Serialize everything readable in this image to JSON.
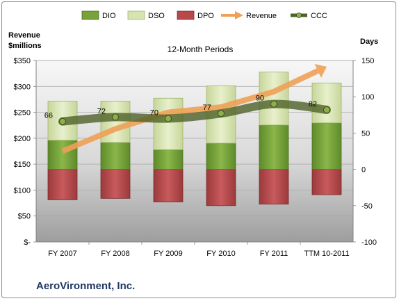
{
  "chart_data": {
    "type": "bar",
    "title": "12-Month Periods",
    "categories": [
      "FY 2007",
      "FY 2008",
      "FY 2009",
      "FY 2010",
      "FY 2011",
      "TTM 10-2011"
    ],
    "left_axis": {
      "label_line1": "Revenue",
      "label_line2": "$millions",
      "ylim": [
        0,
        350
      ],
      "ticks": [
        0,
        50,
        100,
        150,
        200,
        250,
        300,
        350
      ],
      "tick_labels": [
        "$-",
        "$50",
        "$100",
        "$150",
        "$200",
        "$250",
        "$300",
        "$350"
      ]
    },
    "right_axis": {
      "label": "Days",
      "ylim": [
        -100,
        150
      ],
      "ticks": [
        -100,
        -50,
        0,
        50,
        100,
        150
      ],
      "tick_labels": [
        "-100",
        "-50",
        "0",
        "50",
        "100",
        "150"
      ]
    },
    "series": [
      {
        "name": "DIO",
        "axis": "right",
        "color": "#77a33a",
        "values": [
          40,
          37,
          27,
          36,
          61,
          64
        ]
      },
      {
        "name": "DSO",
        "axis": "right",
        "color": "#d7e4b0",
        "values": [
          54,
          57,
          71,
          79,
          73,
          55
        ]
      },
      {
        "name": "DPO",
        "axis": "right",
        "color": "#b8494b",
        "values": [
          -42,
          -40,
          -45,
          -50,
          -48,
          -35
        ]
      },
      {
        "name": "Revenue",
        "axis": "left",
        "color": "#f0a055",
        "values": [
          175,
          218,
          250,
          260,
          290,
          338
        ]
      },
      {
        "name": "CCC",
        "axis": "right",
        "color": "#4f6228",
        "values": [
          66,
          72,
          70,
          77,
          90,
          82
        ],
        "data_labels": [
          "66",
          "72",
          "70",
          "77",
          "90",
          "82"
        ]
      }
    ],
    "grid": true,
    "legend_position": "top"
  },
  "footer": {
    "company": "AeroVironment, Inc."
  }
}
